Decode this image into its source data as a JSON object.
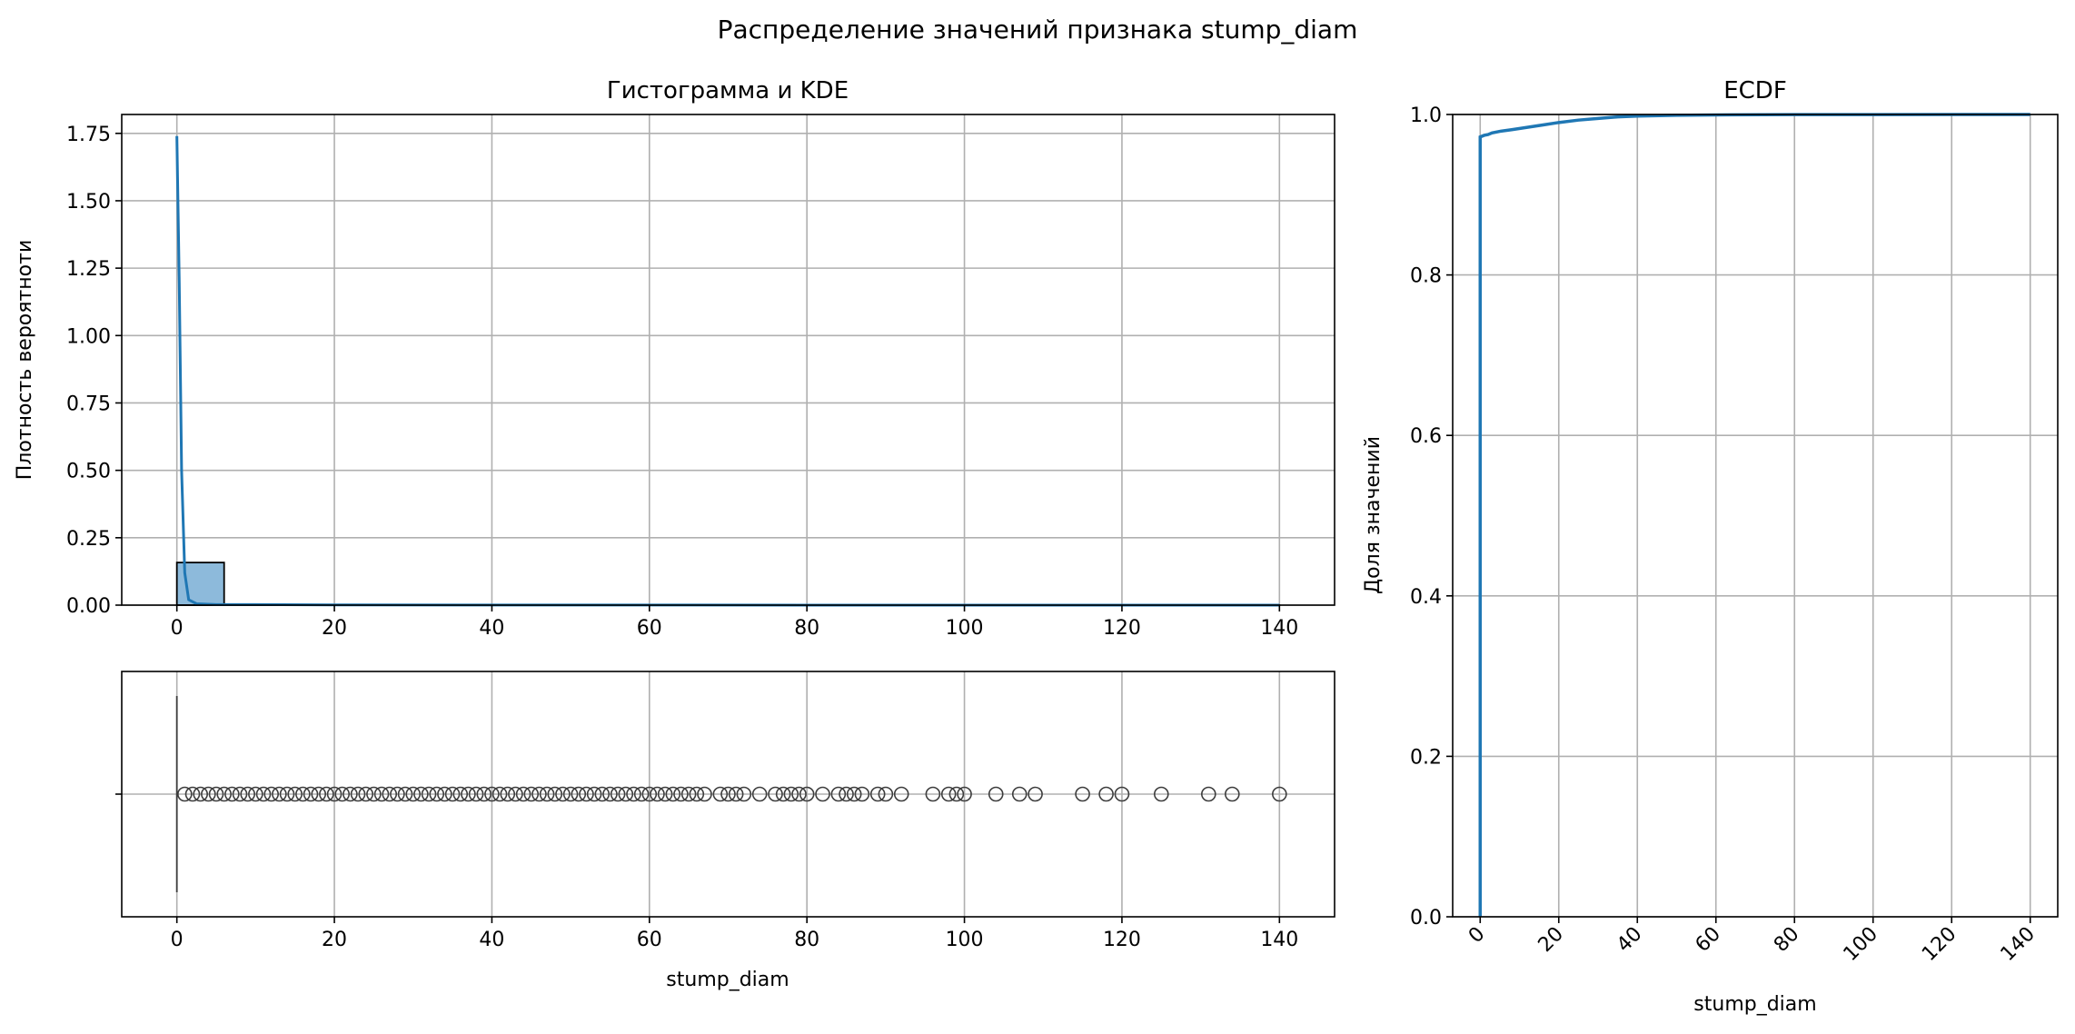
{
  "figure": {
    "suptitle": "Распределение значений признака stump_diam"
  },
  "chart_data": [
    {
      "type": "bar",
      "panel": "histogram-kde",
      "title": "Гистограмма и KDE",
      "xlabel": "",
      "ylabel": "Плотность вероятноти",
      "xlim": [
        -7,
        147
      ],
      "ylim": [
        0,
        1.82
      ],
      "x_ticks": [
        0,
        20,
        40,
        60,
        80,
        100,
        120,
        140
      ],
      "y_ticks": [
        0.0,
        0.25,
        0.5,
        0.75,
        1.0,
        1.25,
        1.5,
        1.75
      ],
      "y_tick_labels": [
        "0.00",
        "0.25",
        "0.50",
        "0.75",
        "1.00",
        "1.25",
        "1.50",
        "1.75"
      ],
      "grid": true,
      "bin_width": 6,
      "bins": [
        {
          "x0": 0,
          "x1": 6,
          "density": 0.158
        },
        {
          "x0": 6,
          "x1": 12,
          "density": 0.003
        },
        {
          "x0": 12,
          "x1": 18,
          "density": 0.0015
        },
        {
          "x0": 18,
          "x1": 24,
          "density": 0.001
        },
        {
          "x0": 24,
          "x1": 30,
          "density": 0.0008
        },
        {
          "x0": 30,
          "x1": 36,
          "density": 0.0006
        },
        {
          "x0": 36,
          "x1": 42,
          "density": 0.0005
        },
        {
          "x0": 42,
          "x1": 48,
          "density": 0.0004
        },
        {
          "x0": 48,
          "x1": 54,
          "density": 0.0003
        },
        {
          "x0": 54,
          "x1": 60,
          "density": 0.0003
        },
        {
          "x0": 60,
          "x1": 66,
          "density": 0.0002
        },
        {
          "x0": 66,
          "x1": 72,
          "density": 0.0002
        },
        {
          "x0": 72,
          "x1": 78,
          "density": 0.0001
        },
        {
          "x0": 78,
          "x1": 84,
          "density": 0.0001
        },
        {
          "x0": 84,
          "x1": 90,
          "density": 0.0001
        },
        {
          "x0": 90,
          "x1": 96,
          "density": 0.0001
        },
        {
          "x0": 96,
          "x1": 102,
          "density": 0.0001
        },
        {
          "x0": 102,
          "x1": 108,
          "density": 0.0001
        },
        {
          "x0": 108,
          "x1": 114,
          "density": 0.0001
        },
        {
          "x0": 114,
          "x1": 120,
          "density": 0.0001
        },
        {
          "x0": 120,
          "x1": 126,
          "density": 0.0001
        },
        {
          "x0": 126,
          "x1": 132,
          "density": 0.0001
        },
        {
          "x0": 132,
          "x1": 138,
          "density": 0.0001
        },
        {
          "x0": 138,
          "x1": 140,
          "density": 0.0001
        }
      ],
      "kde": {
        "x": [
          0,
          0.3,
          0.6,
          1.0,
          1.5,
          2.5,
          5,
          10,
          20,
          40,
          60,
          80,
          100,
          120,
          140
        ],
        "y": [
          1.74,
          1.2,
          0.5,
          0.12,
          0.02,
          0.005,
          0.002,
          0.002,
          0.001,
          0.0005,
          0.0003,
          0.0002,
          0.0001,
          0.0001,
          0.0001
        ]
      },
      "colors": {
        "bar_fill": "#8dbadb",
        "bar_edge": "#000000",
        "kde": "#1f77b4",
        "grid": "#b0b0b0"
      }
    },
    {
      "type": "scatter",
      "panel": "boxplot",
      "title": "",
      "xlabel": "stump_diam",
      "ylabel": "",
      "xlim": [
        -7,
        147
      ],
      "x_ticks": [
        0,
        20,
        40,
        60,
        80,
        100,
        120,
        140
      ],
      "grid": true,
      "box": {
        "q1": 0,
        "median": 0,
        "q3": 0,
        "whisker_low": 0,
        "whisker_high": 0
      },
      "outliers": [
        1,
        2,
        3,
        4,
        5,
        6,
        7,
        8,
        9,
        10,
        11,
        12,
        13,
        14,
        15,
        16,
        17,
        18,
        19,
        20,
        21,
        22,
        23,
        24,
        25,
        26,
        27,
        28,
        29,
        30,
        31,
        32,
        33,
        34,
        35,
        36,
        37,
        38,
        39,
        40,
        41,
        42,
        43,
        44,
        45,
        46,
        47,
        48,
        49,
        50,
        51,
        52,
        53,
        54,
        55,
        56,
        57,
        58,
        59,
        60,
        61,
        62,
        63,
        64,
        65,
        66,
        67,
        69,
        70,
        71,
        72,
        74,
        76,
        77,
        78,
        79,
        80,
        82,
        84,
        85,
        86,
        87,
        89,
        90,
        92,
        96,
        98,
        99,
        100,
        104,
        107,
        109,
        115,
        118,
        120,
        125,
        131,
        134,
        140
      ],
      "colors": {
        "marker_edge": "#3d3d3d",
        "grid": "#b0b0b0"
      }
    },
    {
      "type": "line",
      "panel": "ecdf",
      "title": "ECDF",
      "xlabel": "stump_diam",
      "ylabel": "Доля значений",
      "xlim": [
        -7,
        147
      ],
      "ylim": [
        0,
        1.0
      ],
      "x_ticks": [
        0,
        20,
        40,
        60,
        80,
        100,
        120,
        140
      ],
      "y_ticks": [
        0.0,
        0.2,
        0.4,
        0.6,
        0.8,
        1.0
      ],
      "y_tick_labels": [
        "0.0",
        "0.2",
        "0.4",
        "0.6",
        "0.8",
        "1.0"
      ],
      "x_tick_rotation": 45,
      "grid": true,
      "series": [
        {
          "x": [
            0,
            0,
            1,
            2,
            3,
            5,
            8,
            12,
            16,
            20,
            25,
            30,
            35,
            40,
            50,
            60,
            80,
            100,
            140
          ],
          "y": [
            0,
            0.972,
            0.974,
            0.975,
            0.977,
            0.979,
            0.981,
            0.984,
            0.987,
            0.99,
            0.993,
            0.995,
            0.997,
            0.998,
            0.999,
            0.9995,
            0.9998,
            0.9999,
            1.0
          ]
        }
      ],
      "colors": {
        "line": "#1f77b4",
        "grid": "#b0b0b0"
      }
    }
  ]
}
